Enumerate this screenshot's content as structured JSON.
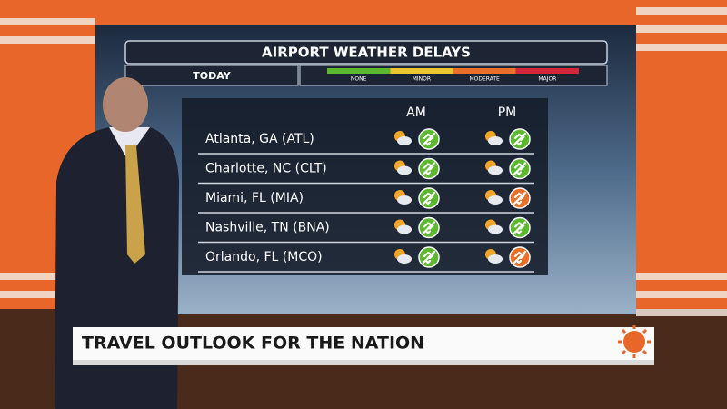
{
  "screen": {
    "title": "AIRPORT WEATHER DELAYS",
    "day": "TODAY",
    "legend": [
      {
        "label": "NONE",
        "color": "#5cb82e"
      },
      {
        "label": "MINOR",
        "color": "#e8c531"
      },
      {
        "label": "MODERATE",
        "color": "#e8702a"
      },
      {
        "label": "MAJOR",
        "color": "#d4263a"
      }
    ],
    "columns": [
      "AM",
      "PM"
    ],
    "rows": [
      {
        "airport": "Atlanta, GA (ATL)",
        "colors": [
          "#5cb82e",
          "#5cb82e"
        ]
      },
      {
        "airport": "Charlotte, NC (CLT)",
        "colors": [
          "#5cb82e",
          "#5cb82e"
        ]
      },
      {
        "airport": "Miami, FL (MIA)",
        "colors": [
          "#5cb82e",
          "#e8702a"
        ]
      },
      {
        "airport": "Nashville, TN (BNA)",
        "colors": [
          "#5cb82e",
          "#5cb82e"
        ]
      },
      {
        "airport": "Orlando, FL (MCO)",
        "colors": [
          "#5cb82e",
          "#e8702a"
        ]
      }
    ]
  },
  "lower_third": {
    "headline": "TRAVEL OUTLOOK FOR THE NATION"
  }
}
